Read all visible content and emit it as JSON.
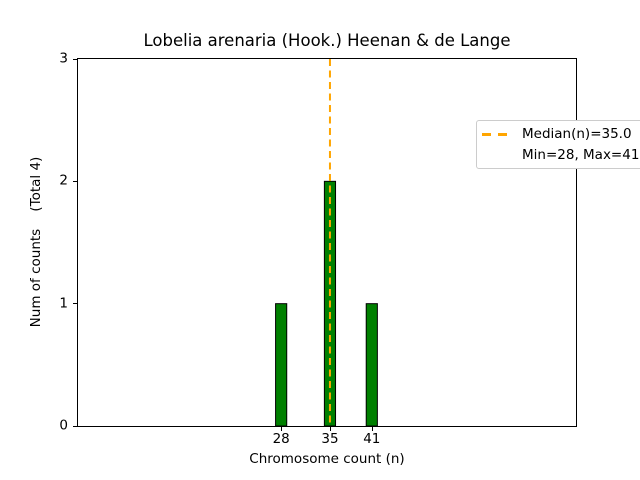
{
  "chart_data": {
    "type": "bar",
    "title": "Lobelia arenaria (Hook.) Heenan & de Lange",
    "xlabel": "Chromosome count (n)",
    "ylabel": "Num of counts    (Total 4)",
    "x": [
      28,
      35,
      41
    ],
    "values": [
      1,
      2,
      1
    ],
    "total_counts": 4,
    "yticks": [
      0,
      1,
      2,
      3
    ],
    "ylim": [
      0,
      3
    ],
    "xlim": [
      -1.14,
      70.29
    ],
    "bar_width_units": 1.6,
    "bar_color": "#008000",
    "bar_edge_color": "#000000",
    "median": 35.0,
    "min": 28,
    "max": 41,
    "median_line_color": "#FFA500",
    "grid": false,
    "legend": {
      "position": "upper right",
      "entries": [
        {
          "label": "Median(n)=35.0",
          "marker": "orange-dashed-line"
        },
        {
          "label": "Min=28, Max=41",
          "marker": "none"
        }
      ]
    }
  }
}
